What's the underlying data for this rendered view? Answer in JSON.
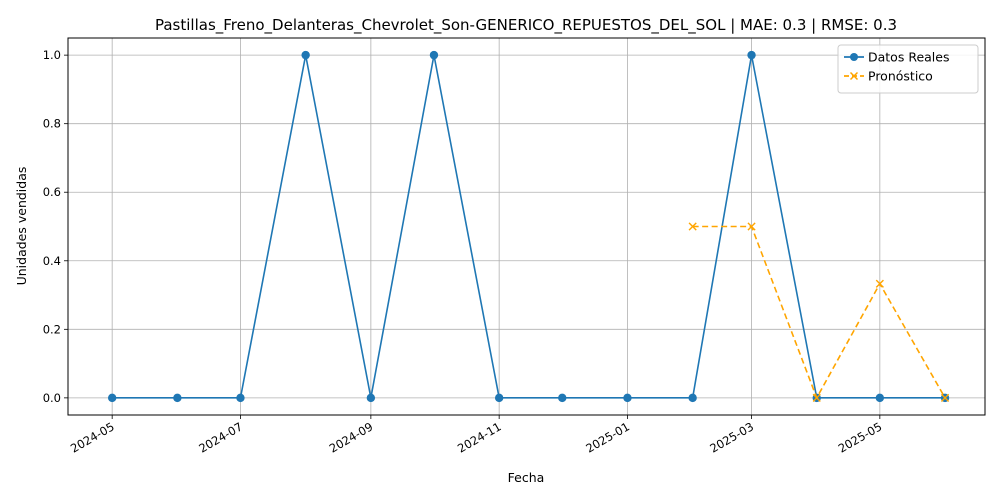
{
  "chart_data": {
    "type": "line",
    "title": "Pastillas_Freno_Delanteras_Chevrolet_Son-GENERICO_REPUESTOS_DEL_SOL | MAE: 0.3 | RMSE: 0.3",
    "xlabel": "Fecha",
    "ylabel": "Unidades vendidas",
    "x_ticks": [
      "2024-05",
      "2024-07",
      "2024-09",
      "2024-11",
      "2025-01",
      "2025-03",
      "2025-05"
    ],
    "y_ticks": [
      "0.0",
      "0.2",
      "0.4",
      "0.6",
      "0.8",
      "1.0"
    ],
    "ylim": [
      -0.05,
      1.05
    ],
    "xlim": [
      "2024-04-10",
      "2025-06-20"
    ],
    "grid": true,
    "legend_position": "top-right",
    "series": [
      {
        "name": "Datos Reales",
        "color": "#1f77b4",
        "line_style": "solid",
        "marker": "circle",
        "points": [
          {
            "x": "2024-05-01",
            "y": 0
          },
          {
            "x": "2024-06-01",
            "y": 0
          },
          {
            "x": "2024-07-01",
            "y": 0
          },
          {
            "x": "2024-08-01",
            "y": 1
          },
          {
            "x": "2024-09-01",
            "y": 0
          },
          {
            "x": "2024-10-01",
            "y": 1
          },
          {
            "x": "2024-11-01",
            "y": 0
          },
          {
            "x": "2024-12-01",
            "y": 0
          },
          {
            "x": "2025-01-01",
            "y": 0
          },
          {
            "x": "2025-02-01",
            "y": 0
          },
          {
            "x": "2025-03-01",
            "y": 1
          },
          {
            "x": "2025-04-01",
            "y": 0
          },
          {
            "x": "2025-05-01",
            "y": 0
          },
          {
            "x": "2025-06-01",
            "y": 0
          }
        ]
      },
      {
        "name": "Pronóstico",
        "color": "#ffa500",
        "line_style": "dashed",
        "marker": "x",
        "points": [
          {
            "x": "2025-02-01",
            "y": 0.5
          },
          {
            "x": "2025-03-01",
            "y": 0.5
          },
          {
            "x": "2025-04-01",
            "y": 0
          },
          {
            "x": "2025-05-01",
            "y": 0.333
          },
          {
            "x": "2025-06-01",
            "y": 0
          }
        ]
      }
    ]
  }
}
